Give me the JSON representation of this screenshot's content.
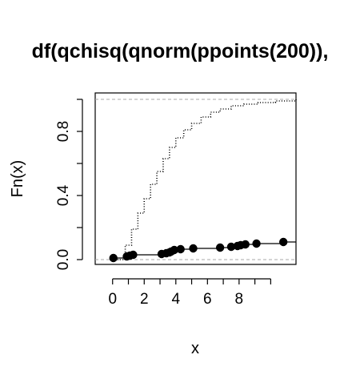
{
  "chart_data": {
    "type": "line",
    "title": "df(qchisq(qnorm(ppoints(200)),",
    "xlabel": "x",
    "ylabel": "Fn(x)",
    "x_ticks": [
      0,
      2,
      4,
      6,
      8
    ],
    "y_ticks": [
      "0.0",
      "0.4",
      "0.8"
    ],
    "xlim": [
      -1.1,
      11.6
    ],
    "ylim": [
      -0.03,
      1.04
    ],
    "reference_lines": [
      0,
      1
    ],
    "series": [
      {
        "style": "dotted-step",
        "x": [
          0.3,
          0.8,
          1.2,
          1.6,
          2.0,
          2.4,
          2.8,
          3.2,
          3.6,
          4.0,
          4.5,
          5.0,
          5.6,
          6.2,
          6.8,
          7.5,
          8.3,
          9.2,
          10.3,
          11.6
        ],
        "values": [
          0.0,
          0.09,
          0.19,
          0.29,
          0.38,
          0.47,
          0.55,
          0.63,
          0.7,
          0.76,
          0.81,
          0.85,
          0.89,
          0.92,
          0.94,
          0.96,
          0.97,
          0.98,
          0.99,
          1.0
        ]
      },
      {
        "style": "step-points",
        "x": [
          0.05,
          0.9,
          1.1,
          1.3,
          3.1,
          3.4,
          3.6,
          3.7,
          3.9,
          4.3,
          5.1,
          6.8,
          7.5,
          7.9,
          8.1,
          8.4,
          9.1,
          10.8
        ],
        "values": [
          0.01,
          0.02,
          0.025,
          0.03,
          0.035,
          0.04,
          0.045,
          0.05,
          0.06,
          0.065,
          0.07,
          0.075,
          0.08,
          0.085,
          0.09,
          0.095,
          0.1,
          0.11
        ]
      }
    ]
  }
}
